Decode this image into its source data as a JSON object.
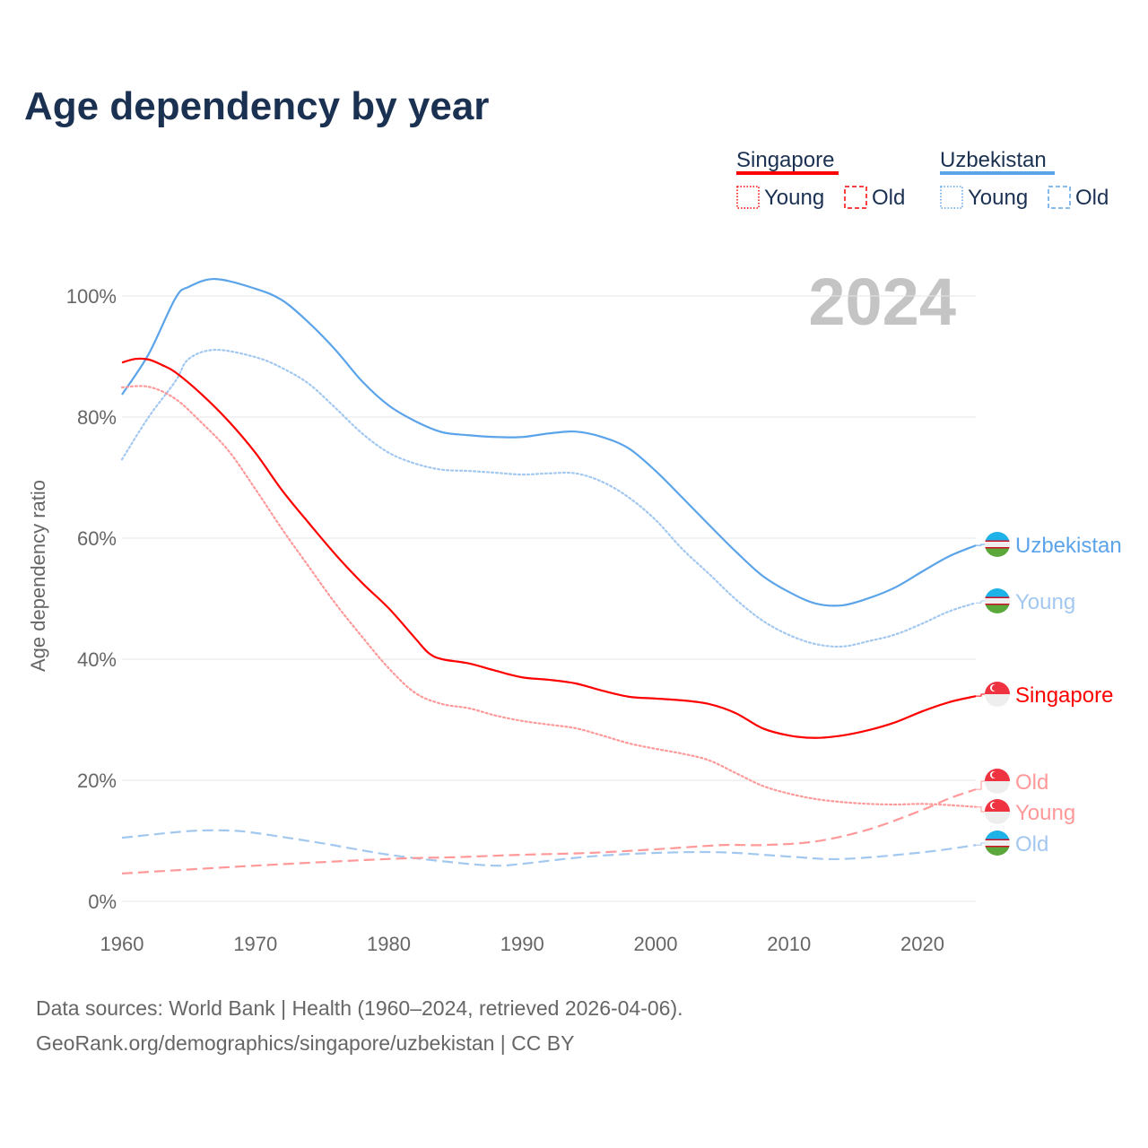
{
  "title": "Age dependency by year",
  "watermark_year": "2024",
  "legend": {
    "groups": [
      {
        "country": "Singapore",
        "color": "#ff0000",
        "young_label": "Young",
        "old_label": "Old"
      },
      {
        "country": "Uzbekistan",
        "color": "#5ba4ea",
        "young_label": "Young",
        "old_label": "Old"
      }
    ]
  },
  "end_labels": [
    "Uzbekistan",
    "Young",
    "Singapore",
    "Old",
    "Young",
    "Old"
  ],
  "source": {
    "line1": "Data sources: World Bank | Health (1960–2024, retrieved 2026-04-06).",
    "line2": "GeoRank.org/demographics/singapore/uzbekistan | CC BY"
  },
  "chart_data": {
    "type": "line",
    "title": "Age dependency by year",
    "xlabel": "",
    "ylabel": "Age dependency ratio",
    "xlim": [
      1960,
      2024
    ],
    "ylim": [
      0,
      100
    ],
    "x_ticks": [
      "1960",
      "1970",
      "1980",
      "1990",
      "2000",
      "2010",
      "2020"
    ],
    "y_ticks": [
      "0%",
      "20%",
      "40%",
      "60%",
      "80%",
      "100%"
    ],
    "grid": true,
    "series": [
      {
        "name": "Uzbekistan",
        "style": "solid",
        "color": "#5ba4ea",
        "x": [
          1960,
          1962,
          1964,
          1965,
          1967,
          1970,
          1972,
          1974,
          1976,
          1978,
          1980,
          1982,
          1984,
          1986,
          1988,
          1990,
          1992,
          1994,
          1996,
          1998,
          2000,
          2002,
          2004,
          2006,
          2008,
          2010,
          2012,
          2014,
          2016,
          2018,
          2020,
          2022,
          2024
        ],
        "values": [
          83.7,
          90.4,
          99.6,
          101.5,
          102.8,
          101.2,
          99.3,
          95.6,
          91.1,
          85.9,
          81.9,
          79.3,
          77.5,
          77.0,
          76.7,
          76.7,
          77.3,
          77.6,
          76.7,
          74.8,
          71.1,
          66.7,
          62.2,
          57.8,
          53.8,
          51.1,
          49.2,
          48.9,
          50.1,
          51.9,
          54.5,
          57.0,
          58.8
        ]
      },
      {
        "name": "Uzbekistan Young",
        "style": "dotted",
        "color": "#a3c8f0",
        "x": [
          1960,
          1962,
          1964,
          1965,
          1967,
          1970,
          1972,
          1974,
          1976,
          1978,
          1980,
          1982,
          1984,
          1986,
          1988,
          1990,
          1992,
          1994,
          1996,
          1998,
          2000,
          2002,
          2004,
          2006,
          2008,
          2010,
          2012,
          2014,
          2016,
          2018,
          2020,
          2022,
          2024
        ],
        "values": [
          73.0,
          80.0,
          85.9,
          89.6,
          91.1,
          89.9,
          88.1,
          85.5,
          81.5,
          77.3,
          74.1,
          72.3,
          71.3,
          71.1,
          70.8,
          70.5,
          70.7,
          70.7,
          69.3,
          66.7,
          63.0,
          58.2,
          54.1,
          49.9,
          46.4,
          44.0,
          42.5,
          42.1,
          43.0,
          44.1,
          45.9,
          47.9,
          49.3
        ]
      },
      {
        "name": "Uzbekistan Old",
        "style": "dashed",
        "color": "#a3c8f0",
        "x": [
          1960,
          1965,
          1968,
          1970,
          1975,
          1980,
          1985,
          1988,
          1990,
          1995,
          2000,
          2005,
          2010,
          2014,
          2020,
          2024
        ],
        "values": [
          10.5,
          11.6,
          11.7,
          11.3,
          9.6,
          7.7,
          6.4,
          5.9,
          6.2,
          7.4,
          8.0,
          8.1,
          7.4,
          7.0,
          8.1,
          9.3
        ]
      },
      {
        "name": "Singapore",
        "style": "solid",
        "color": "#ff0000",
        "x": [
          1960,
          1961,
          1962,
          1963,
          1964,
          1966,
          1968,
          1970,
          1972,
          1974,
          1976,
          1978,
          1980,
          1982,
          1983,
          1984,
          1986,
          1988,
          1990,
          1992,
          1994,
          1996,
          1998,
          2000,
          2002,
          2004,
          2006,
          2008,
          2010,
          2012,
          2014,
          2016,
          2018,
          2020,
          2022,
          2024
        ],
        "values": [
          89.0,
          89.6,
          89.5,
          88.6,
          87.4,
          83.7,
          79.3,
          74.1,
          67.9,
          62.5,
          57.3,
          52.6,
          48.4,
          43.4,
          41.0,
          40.0,
          39.3,
          38.1,
          37.0,
          36.6,
          36.0,
          34.8,
          33.8,
          33.5,
          33.2,
          32.6,
          31.1,
          28.6,
          27.4,
          27.0,
          27.4,
          28.3,
          29.6,
          31.4,
          32.9,
          33.9
        ]
      },
      {
        "name": "Singapore Young",
        "style": "dotted",
        "color": "#ff9999",
        "x": [
          1960,
          1962,
          1964,
          1966,
          1968,
          1970,
          1972,
          1974,
          1976,
          1978,
          1980,
          1982,
          1984,
          1986,
          1988,
          1990,
          1992,
          1994,
          1996,
          1998,
          2000,
          2002,
          2004,
          2006,
          2008,
          2010,
          2012,
          2014,
          2016,
          2018,
          2020,
          2022,
          2024
        ],
        "values": [
          84.9,
          85.0,
          83.0,
          79.0,
          74.4,
          68.1,
          61.5,
          55.3,
          49.2,
          43.7,
          38.5,
          34.4,
          32.6,
          31.9,
          30.7,
          29.8,
          29.2,
          28.6,
          27.4,
          26.1,
          25.2,
          24.4,
          23.3,
          21.2,
          19.1,
          17.8,
          16.9,
          16.4,
          16.1,
          16.0,
          16.1,
          15.9,
          15.6
        ]
      },
      {
        "name": "Singapore Old",
        "style": "dashed",
        "color": "#ff9999",
        "x": [
          1960,
          1970,
          1980,
          1985,
          1990,
          1995,
          2000,
          2005,
          2008,
          2012,
          2016,
          2020,
          2022,
          2024
        ],
        "values": [
          4.6,
          5.9,
          7.0,
          7.3,
          7.7,
          8.0,
          8.6,
          9.3,
          9.3,
          9.9,
          11.9,
          15.1,
          17.0,
          18.5
        ]
      }
    ]
  }
}
